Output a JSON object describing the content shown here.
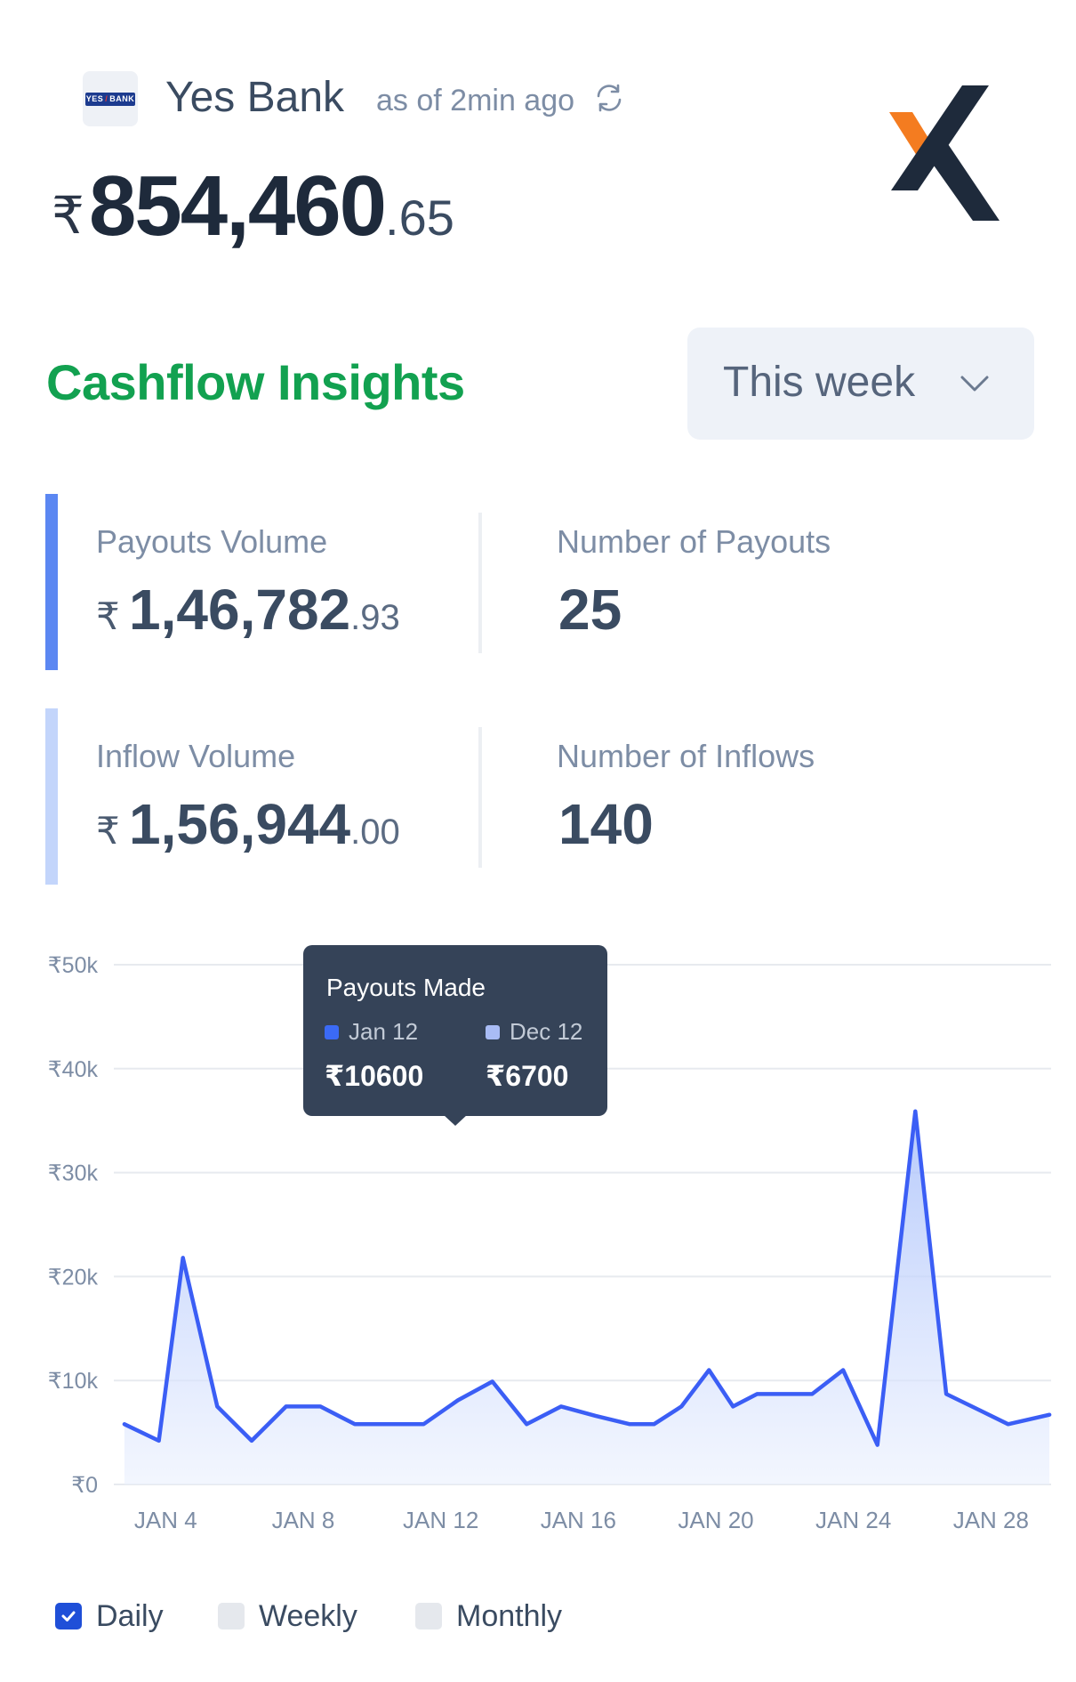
{
  "header": {
    "bank_logo_left": "YES",
    "bank_logo_right": "BANK",
    "bank_name": "Yes Bank",
    "as_of": "as of 2min ago",
    "currency_symbol": "₹",
    "balance_integer": "854,460",
    "balance_decimal": ".65"
  },
  "section": {
    "title": "Cashflow Insights",
    "period_selected": "This week"
  },
  "stats": {
    "payouts_volume_label": "Payouts Volume",
    "payouts_volume_integer": "1,46,782",
    "payouts_volume_decimal": ".93",
    "number_of_payouts_label": "Number of Payouts",
    "number_of_payouts_value": "25",
    "inflow_volume_label": "Inflow Volume",
    "inflow_volume_integer": "1,56,944",
    "inflow_volume_decimal": ".00",
    "number_of_inflows_label": "Number of Inflows",
    "number_of_inflows_value": "140"
  },
  "tooltip": {
    "title": "Payouts Made",
    "series_a_label": "Jan 12",
    "series_a_value": "₹10600",
    "series_b_label": "Dec 12",
    "series_b_value": "₹6700"
  },
  "legend": {
    "daily": "Daily",
    "weekly": "Weekly",
    "monthly": "Monthly"
  },
  "colors": {
    "accent_green": "#12a150",
    "line_blue": "#3b5ef5",
    "tooltip_bg": "#354358",
    "swatch_dark": "#3b6af5",
    "swatch_light": "#a9bcf5"
  },
  "chart_data": {
    "type": "area",
    "title": "",
    "xlabel": "",
    "ylabel": "",
    "ylim": [
      0,
      50000
    ],
    "yticks": [
      0,
      10000,
      20000,
      30000,
      40000,
      50000
    ],
    "ytick_labels": [
      "₹0",
      "₹10k",
      "₹20k",
      "₹30k",
      "₹40k",
      "₹50k"
    ],
    "xticks": [
      4,
      8,
      12,
      16,
      20,
      24,
      28
    ],
    "xtick_labels": [
      "JAN 4",
      "JAN 8",
      "JAN 12",
      "JAN 16",
      "JAN 20",
      "JAN 24",
      "JAN 28"
    ],
    "xlim": [
      2.75,
      29.75
    ],
    "grid": true,
    "legend": "bottom-left",
    "series": [
      {
        "x": [
          2.8,
          3.8,
          4.5,
          5.5,
          6.5,
          7.5,
          8.5,
          9.5,
          10.5,
          11.5,
          12.5,
          13.5,
          14.5,
          15.5,
          16.5,
          17.5,
          18.2,
          19.0,
          19.8,
          20.5,
          21.2,
          21.8,
          22.8,
          23.7,
          24.7,
          25.8,
          26.7,
          27.7,
          28.5,
          29.7
        ],
        "y": [
          5800,
          4200,
          21800,
          7500,
          4200,
          7500,
          7500,
          5800,
          5800,
          5800,
          8100,
          9900,
          5800,
          7500,
          6600,
          5800,
          5800,
          7500,
          11000,
          7500,
          8700,
          8700,
          8700,
          11000,
          3800,
          35900,
          8700,
          7100,
          5800,
          6700
        ]
      }
    ]
  }
}
